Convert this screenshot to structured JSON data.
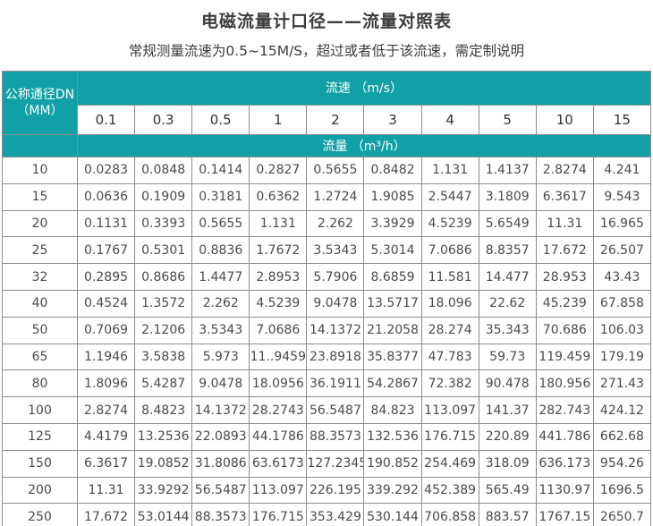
{
  "header": {
    "title": "电磁流量计口径——流量对照表",
    "subtitle": "常规测量流速为0.5~15M/S，超过或者低于该流速，需定制说明"
  },
  "table": {
    "corner_header_line1": "公称通径DN",
    "corner_header_line2": "（MM）",
    "velocity_header": "流速 （m/s）",
    "flow_header": "流量 （m³/h）",
    "velocity_columns": [
      "0.1",
      "0.3",
      "0.5",
      "1",
      "2",
      "3",
      "4",
      "5",
      "10",
      "15"
    ],
    "rows": [
      {
        "dn": "10",
        "values": [
          "0.0283",
          "0.0848",
          "0.1414",
          "0.2827",
          "0.5655",
          "0.8482",
          "1.131",
          "1.4137",
          "2.8274",
          "4.241"
        ]
      },
      {
        "dn": "15",
        "values": [
          "0.0636",
          "0.1909",
          "0.3181",
          "0.6362",
          "1.2724",
          "1.9085",
          "2.5447",
          "3.1809",
          "6.3617",
          "9.543"
        ]
      },
      {
        "dn": "20",
        "values": [
          "0.1131",
          "0.3393",
          "0.5655",
          "1.131",
          "2.262",
          "3.3929",
          "4.5239",
          "5.6549",
          "11.31",
          "16.965"
        ]
      },
      {
        "dn": "25",
        "values": [
          "0.1767",
          "0.5301",
          "0.8836",
          "1.7672",
          "3.5343",
          "5.3014",
          "7.0686",
          "8.8357",
          "17.672",
          "26.507"
        ]
      },
      {
        "dn": "32",
        "values": [
          "0.2895",
          "0.8686",
          "1.4477",
          "2.8953",
          "5.7906",
          "8.6859",
          "11.581",
          "14.477",
          "28.953",
          "43.43"
        ]
      },
      {
        "dn": "40",
        "values": [
          "0.4524",
          "1.3572",
          "2.262",
          "4.5239",
          "9.0478",
          "13.5717",
          "18.096",
          "22.62",
          "45.239",
          "67.858"
        ]
      },
      {
        "dn": "50",
        "values": [
          "0.7069",
          "2.1206",
          "3.5343",
          "7.0686",
          "14.1372",
          "21.2058",
          "28.274",
          "35.343",
          "70.686",
          "106.03"
        ]
      },
      {
        "dn": "65",
        "values": [
          "1.1946",
          "3.5838",
          "5.973",
          "11..9459",
          "23.8918",
          "35.8377",
          "47.783",
          "59.73",
          "119.459",
          "179.19"
        ]
      },
      {
        "dn": "80",
        "values": [
          "1.8096",
          "5.4287",
          "9.0478",
          "18.0956",
          "36.1911",
          "54.2867",
          "72.382",
          "90.478",
          "180.956",
          "271.43"
        ]
      },
      {
        "dn": "100",
        "values": [
          "2.8274",
          "8.4823",
          "14.1372",
          "28.2743",
          "56.5487",
          "84.823",
          "113.097",
          "141.37",
          "282.743",
          "424.12"
        ]
      },
      {
        "dn": "125",
        "values": [
          "4.4179",
          "13.2536",
          "22.0893",
          "44.1786",
          "88.3573",
          "132.536",
          "176.715",
          "220.89",
          "441.786",
          "662.68"
        ]
      },
      {
        "dn": "150",
        "values": [
          "6.3617",
          "19.0852",
          "31.8086",
          "63.6173",
          "127.2345",
          "190.852",
          "254.469",
          "318.09",
          "636.173",
          "954.26"
        ]
      },
      {
        "dn": "200",
        "values": [
          "11.31",
          "33.9292",
          "56.5487",
          "113.097",
          "226.195",
          "339.292",
          "452.389",
          "565.49",
          "1130.97",
          "1696.5"
        ]
      },
      {
        "dn": "250",
        "values": [
          "17.672",
          "53.0144",
          "88.3573",
          "176.715",
          "353.429",
          "530.144",
          "706.858",
          "883.57",
          "1767.15",
          "2650.7"
        ]
      }
    ]
  },
  "colors": {
    "header_teal": "#10a0a5",
    "title_text": "#3c3c3c",
    "cell_text": "#4a4a4a",
    "grid_border": "#8c8c8c",
    "teal_cell_border": "#9a4f46"
  }
}
